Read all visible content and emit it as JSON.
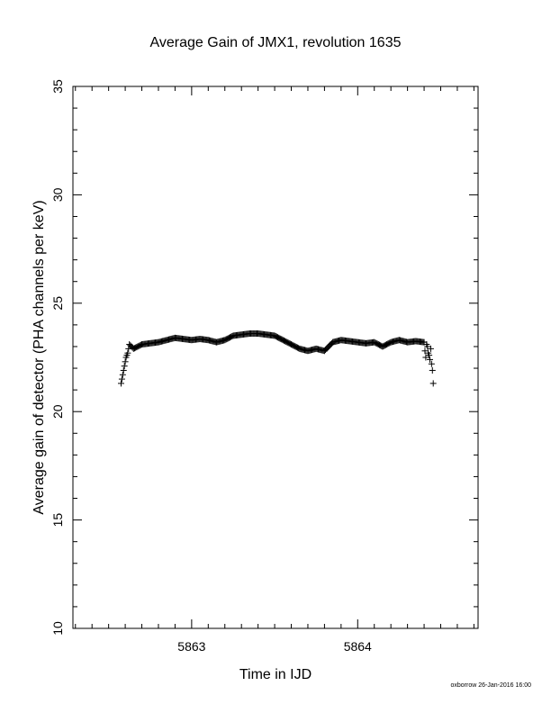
{
  "chart_data": {
    "type": "scatter",
    "title": "Average Gain of JMX1, revolution 1635",
    "xlabel": "Time in IJD",
    "ylabel": "Average gain of detector (PHA channels per keV)",
    "xlim": [
      5862.285,
      5864.725
    ],
    "ylim": [
      10,
      35
    ],
    "xticks": [
      "5863",
      "5864"
    ],
    "xtick_values": [
      5863,
      5864
    ],
    "yticks": [
      "10",
      "15",
      "20",
      "25",
      "30",
      "35"
    ],
    "ytick_values": [
      10,
      15,
      20,
      25,
      30,
      35
    ],
    "marker": "+",
    "grid": false,
    "series": [
      {
        "x": [
          5862.575,
          5862.58,
          5862.585,
          5862.59,
          5862.595,
          5862.6,
          5862.605,
          5862.61,
          5862.615,
          5862.62,
          5862.625,
          5862.65,
          5862.7,
          5862.75,
          5862.8,
          5862.85,
          5862.9,
          5862.95,
          5863.0,
          5863.05,
          5863.1,
          5863.15,
          5863.2,
          5863.25,
          5863.3,
          5863.35,
          5863.4,
          5863.45,
          5863.5,
          5863.55,
          5863.6,
          5863.65,
          5863.7,
          5863.75,
          5863.8,
          5863.85,
          5863.9,
          5863.95,
          5864.0,
          5864.05,
          5864.1,
          5864.15,
          5864.2,
          5864.25,
          5864.3,
          5864.35,
          5864.4,
          5864.405,
          5864.41,
          5864.415,
          5864.42,
          5864.425,
          5864.43,
          5864.435,
          5864.44,
          5864.445,
          5864.45,
          5864.455
        ],
        "y": [
          21.3,
          21.5,
          21.7,
          21.9,
          22.1,
          22.3,
          22.5,
          22.6,
          22.7,
          22.9,
          23.1,
          22.9,
          23.1,
          23.15,
          23.2,
          23.3,
          23.4,
          23.35,
          23.3,
          23.35,
          23.3,
          23.2,
          23.3,
          23.5,
          23.55,
          23.6,
          23.6,
          23.55,
          23.5,
          23.3,
          23.1,
          22.9,
          22.8,
          22.9,
          22.8,
          23.2,
          23.3,
          23.25,
          23.2,
          23.15,
          23.2,
          23.0,
          23.2,
          23.3,
          23.2,
          23.25,
          23.2,
          22.8,
          22.5,
          23.1,
          23.0,
          22.7,
          22.6,
          22.4,
          22.9,
          22.2,
          21.9,
          21.3
        ]
      }
    ]
  },
  "footer": "oxborrow 26-Jan-2016 16:00"
}
